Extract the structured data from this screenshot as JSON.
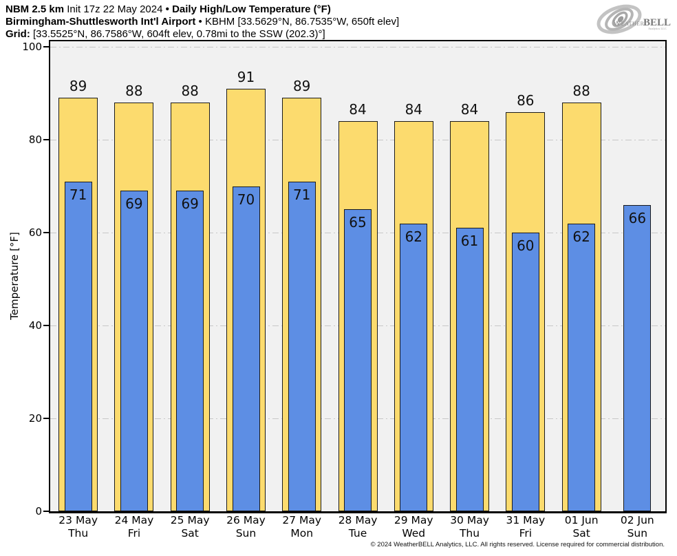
{
  "header": {
    "line1": {
      "bold1": "NBM 2.5 km",
      "regular1": "Init 17z 22 May 2024",
      "bullet": "•",
      "bold2": "Daily High/Low Temperature (°F)"
    },
    "line2": {
      "bold": "Birmingham-Shuttlesworth Int'l Airport",
      "bullet": "•",
      "regular": "KBHM [33.5629°N, 86.7535°W, 650ft elev]"
    },
    "line3": {
      "bold": "Grid:",
      "regular": "[33.5525°N, 86.7586°W, 604ft elev, 0.78mi to the SSW (202.3)°]"
    }
  },
  "logo": {
    "brand_part1": "Weather",
    "brand_part2": "BELL",
    "subtitle": "Analytics LLC"
  },
  "footer": {
    "text": "© 2024 WeatherBELL Analytics, LLC. All rights reserved. License required for commercial distribution."
  },
  "chart_data": {
    "type": "bar",
    "title": "Daily High/Low Temperature (°F)",
    "station": "Birmingham-Shuttlesworth Int'l Airport (KBHM)",
    "ylabel": "Temperature [°F]",
    "ylim": [
      0,
      100
    ],
    "yticks": [
      0,
      20,
      40,
      60,
      80,
      100
    ],
    "grid": "horizontal dash-dot lines at y ticks",
    "legend_position": "none",
    "plot_background": "#f1f1f1",
    "grid_color": "#c7c7c7",
    "categories": [
      {
        "date": "23 May",
        "day": "Thu"
      },
      {
        "date": "24 May",
        "day": "Fri"
      },
      {
        "date": "25 May",
        "day": "Sat"
      },
      {
        "date": "26 May",
        "day": "Sun"
      },
      {
        "date": "27 May",
        "day": "Mon"
      },
      {
        "date": "28 May",
        "day": "Tue"
      },
      {
        "date": "29 May",
        "day": "Wed"
      },
      {
        "date": "30 May",
        "day": "Thu"
      },
      {
        "date": "31 May",
        "day": "Fri"
      },
      {
        "date": "01 Jun",
        "day": "Sat"
      },
      {
        "date": "02 Jun",
        "day": "Sun"
      }
    ],
    "series": [
      {
        "name": "High",
        "color": "#fcdb6e",
        "edge_color": "#1a1a1a",
        "values": [
          89,
          88,
          88,
          91,
          89,
          84,
          84,
          84,
          86,
          88,
          null
        ]
      },
      {
        "name": "Low",
        "color": "#5d8ee4",
        "edge_color": "#1a1a1a",
        "values": [
          71,
          69,
          69,
          70,
          71,
          65,
          62,
          61,
          60,
          62,
          66
        ]
      }
    ]
  }
}
